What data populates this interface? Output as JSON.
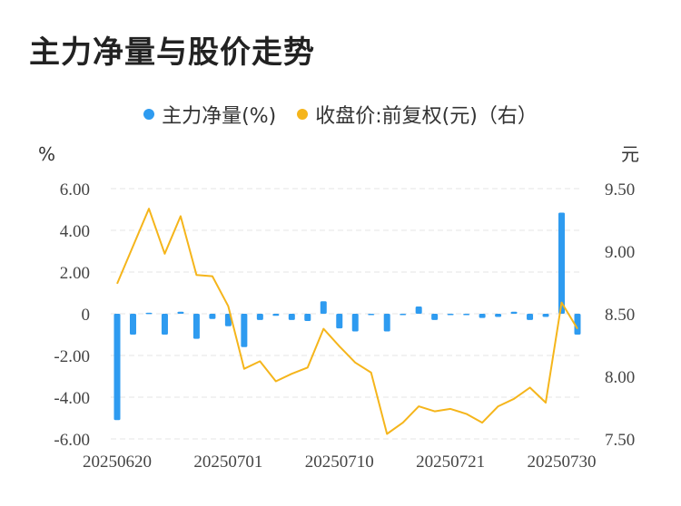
{
  "title": "主力净量与股价走势",
  "colors": {
    "bar": "#2E9BF0",
    "line": "#F5B51B",
    "grid": "#E6E6E6",
    "text": "#444444"
  },
  "chart_data": {
    "type": "bar+line",
    "title": "主力净量与股价走势",
    "left_axis_unit": "%",
    "right_axis_unit": "元",
    "left_ylim": [
      -6,
      6
    ],
    "right_ylim": [
      7.5,
      9.5
    ],
    "left_ticks": [
      "6.00",
      "4.00",
      "2.00",
      "0",
      "-2.00",
      "-4.00",
      "-6.00"
    ],
    "right_ticks": [
      "9.50",
      "9.00",
      "8.50",
      "8.00",
      "7.50"
    ],
    "x_tick_labels": [
      {
        "index": 0,
        "label": "20250620"
      },
      {
        "index": 7,
        "label": "20250701"
      },
      {
        "index": 14,
        "label": "20250710"
      },
      {
        "index": 21,
        "label": "20250721"
      },
      {
        "index": 28,
        "label": "20250730"
      }
    ],
    "grid": true,
    "legend_position": "top",
    "series": [
      {
        "name": "主力净量(%)",
        "type": "bar",
        "axis": "left",
        "values": [
          -5.1,
          -1.0,
          0.05,
          -1.0,
          0.1,
          -1.2,
          -0.25,
          -0.6,
          -1.6,
          -0.3,
          -0.1,
          -0.3,
          -0.35,
          0.6,
          -0.7,
          -0.85,
          -0.05,
          -0.85,
          -0.05,
          0.35,
          -0.3,
          -0.05,
          -0.05,
          -0.2,
          -0.15,
          0.1,
          -0.3,
          -0.15,
          4.85,
          -1.0
        ]
      },
      {
        "name": "收盘价:前复权(元)（右）",
        "type": "line",
        "axis": "right",
        "values": [
          8.74,
          9.04,
          9.34,
          8.98,
          9.28,
          8.81,
          8.8,
          8.56,
          8.06,
          8.12,
          7.96,
          8.02,
          8.07,
          8.38,
          8.24,
          8.11,
          8.03,
          7.54,
          7.63,
          7.76,
          7.72,
          7.74,
          7.7,
          7.63,
          7.76,
          7.82,
          7.91,
          7.79,
          8.59,
          8.38
        ]
      }
    ]
  }
}
